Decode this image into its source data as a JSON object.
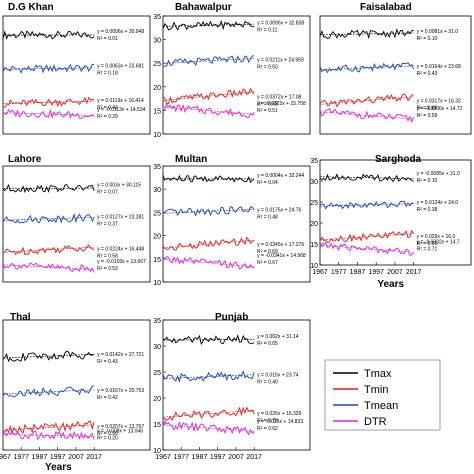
{
  "colors": {
    "Tmax": "#000000",
    "Tmin": "#e31a1c",
    "Tmean": "#1f3fbf",
    "DTR": "#e020e0"
  },
  "legend": {
    "items": [
      "Tmax",
      "Tmin",
      "Tmean",
      "DTR"
    ]
  },
  "years_label": "Years",
  "chart_data": [
    {
      "type": "line",
      "title": "D.G Khan",
      "x_ticks": [],
      "y_ticks": [],
      "series": [
        {
          "name": "Tmax",
          "base": 30.95,
          "equation": "y = 0.0006x + 30.948",
          "r2": "R² = 0.01"
        },
        {
          "name": "Tmean",
          "base": 23.7,
          "equation": "y = 0.0063x + 23.681",
          "r2": "R² = 0.18"
        },
        {
          "name": "Tmin",
          "base": 16.4,
          "equation": "y = 0.0119x + 16.414",
          "r2": "R² = 0.42"
        },
        {
          "name": "DTR",
          "base": 14.5,
          "equation": "y = -0.0113x + 14.534",
          "r2": "R² = 0.29"
        }
      ]
    },
    {
      "type": "line",
      "title": "Bahawalpur",
      "x_ticks": [],
      "y_ticks": [
        "35",
        "30",
        "25",
        "20",
        "15",
        "10"
      ],
      "series": [
        {
          "name": "Tmax",
          "base": 32.8,
          "equation": "y = 0.0096x + 32.838",
          "r2": "R² = 0.11"
        },
        {
          "name": "Tmean",
          "base": 24.96,
          "equation": "y = 0.0211x + 24.959",
          "r2": "R² = 0.50"
        },
        {
          "name": "Tmin",
          "base": 17.1,
          "equation": "y = 0.0372x + 17.08",
          "r2": "R² = 0.68"
        },
        {
          "name": "DTR",
          "base": 15.76,
          "equation": "y = -0.0322x + 15.758",
          "r2": "R² = 0.51"
        }
      ]
    },
    {
      "type": "line",
      "title": "Faisalabad",
      "x_ticks": [],
      "y_ticks": [],
      "series": [
        {
          "name": "Tmax",
          "base": 31.0,
          "equation": "y = 0.0081x + 31.0",
          "r2": "R² = 0.10"
        },
        {
          "name": "Tmean",
          "base": 23.6,
          "equation": "y = 0.0164x + 23.68",
          "r2": "R² = 0.43"
        },
        {
          "name": "Tmin",
          "base": 16.3,
          "equation": "y = 0.0317x + 16.32",
          "r2": "R² = 0.66"
        },
        {
          "name": "DTR",
          "base": 14.7,
          "equation": "y = -0.0306x + 14.72",
          "r2": "R² = 0.58"
        }
      ]
    },
    {
      "type": "line",
      "title": "Lahore",
      "x_ticks": [],
      "y_ticks": [],
      "series": [
        {
          "name": "Tmax",
          "base": 30.1,
          "equation": "y = 0.003x + 30.115",
          "r2": "R² = 0.07"
        },
        {
          "name": "Tmean",
          "base": 23.3,
          "equation": "y = 0.0127x + 23.281",
          "r2": "R² = 0.37"
        },
        {
          "name": "Tmin",
          "base": 16.4,
          "equation": "y = 0.0224x + 16.448",
          "r2": "R² = 0.58"
        },
        {
          "name": "DTR",
          "base": 13.7,
          "equation": "y = -0.0193x + 13.667",
          "r2": "R² = 0.53"
        }
      ]
    },
    {
      "type": "line",
      "title": "Multan",
      "x_ticks": [],
      "y_ticks": [
        "35",
        "30",
        "25",
        "20",
        "15",
        "10"
      ],
      "series": [
        {
          "name": "Tmax",
          "base": 32.2,
          "equation": "y = 0.0004x + 32.244",
          "r2": "R² = 0.04"
        },
        {
          "name": "Tmean",
          "base": 24.8,
          "equation": "y = 0.0175x + 24.76",
          "r2": "R² = 0.48"
        },
        {
          "name": "Tmin",
          "base": 17.3,
          "equation": "y = 0.0345x + 17.276",
          "r2": "R² = 0.69"
        },
        {
          "name": "DTR",
          "base": 14.97,
          "equation": "y = -0.0341x + 14.968",
          "r2": "R² = 0.67"
        }
      ]
    },
    {
      "type": "line",
      "title": "Sarghoda",
      "x_ticks": [
        "1967",
        "1977",
        "1987",
        "1997",
        "2007",
        "2017"
      ],
      "y_ticks": [
        "35",
        "30",
        "25",
        "20",
        "15",
        "10"
      ],
      "xlabel": "Years",
      "series": [
        {
          "name": "Tmax",
          "base": 31.0,
          "equation": "y = -0.0085x + 31.0",
          "r2": "R² = 0.10"
        },
        {
          "name": "Tmean",
          "base": 24.0,
          "equation": "y = 0.0124x + 24.0",
          "r2": "R² = 0.38"
        },
        {
          "name": "Tmin",
          "base": 16.0,
          "equation": "y = 0.029x + 16.0",
          "r2": "R² = 0.69"
        },
        {
          "name": "DTR",
          "base": 14.7,
          "equation": "y = -0.0332x + 14.7",
          "r2": "R² = 0.71"
        }
      ]
    },
    {
      "type": "line",
      "title": "Thal",
      "x_ticks": [
        "1967",
        "1977",
        "1987",
        "1997",
        "2007",
        "2017"
      ],
      "y_ticks": [],
      "xlabel": "Years",
      "series": [
        {
          "name": "Tmax",
          "base": 27.7,
          "equation": "y = 0.0142x + 27.721",
          "r2": "R² = 0.43"
        },
        {
          "name": "Tmean",
          "base": 20.75,
          "equation": "y = 0.0167x + 20.753",
          "r2": "R² = 0.42"
        },
        {
          "name": "Tmin",
          "base": 13.8,
          "equation": "y = 0.0207x + 13.767",
          "r2": "R² = 0.56"
        },
        {
          "name": "DTR",
          "base": 13.0,
          "equation": "y = -0.008x + 13.046",
          "r2": "R² = 0.20"
        }
      ]
    },
    {
      "type": "line",
      "title": "Punjab",
      "x_ticks": [
        "1967",
        "1977",
        "1987",
        "1997",
        "2007",
        "2017"
      ],
      "y_ticks": [
        "35",
        "30",
        "25",
        "20",
        "15",
        "10"
      ],
      "series": [
        {
          "name": "Tmax",
          "base": 31.14,
          "equation": "y = 0.002x + 31.14",
          "r2": "R² = 0.05"
        },
        {
          "name": "Tmean",
          "base": 23.74,
          "equation": "y = 0.015x + 23.74",
          "r2": "R² = 0.40"
        },
        {
          "name": "Tmin",
          "base": 16.33,
          "equation": "y = 0.026x + 16.329",
          "r2": "R² = 0.70"
        },
        {
          "name": "DTR",
          "base": 14.83,
          "equation": "y = -0.025x + 14.833",
          "r2": "R² = 0.62"
        }
      ]
    }
  ]
}
